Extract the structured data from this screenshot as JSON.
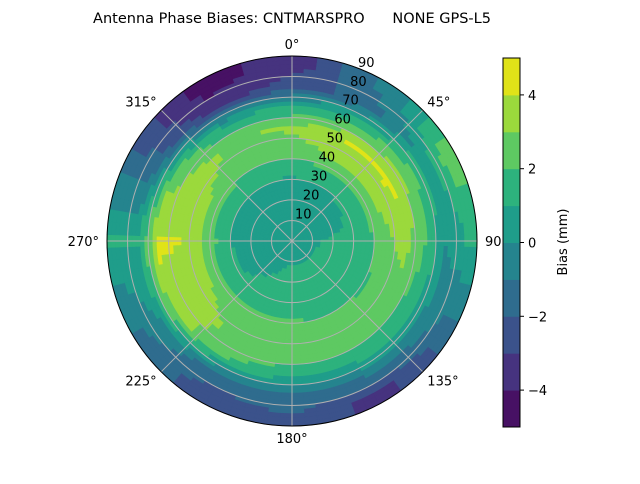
{
  "chart_data": {
    "type": "heatmap",
    "projection": "polar",
    "title": "Antenna Phase Biases: CNTMARSPRO      NONE GPS-L5",
    "theta_direction": "clockwise",
    "theta_zero": "top",
    "theta_tick_labels": [
      "0°",
      "45°",
      "90°",
      "135°",
      "180°",
      "225°",
      "270°",
      "315°"
    ],
    "theta_ticks": [
      0,
      45,
      90,
      135,
      180,
      225,
      270,
      315
    ],
    "radial_ticks": [
      10,
      20,
      30,
      40,
      50,
      60,
      70,
      80,
      90
    ],
    "radial_tick_labels": [
      "10",
      "20",
      "30",
      "40",
      "50",
      "60",
      "70",
      "80",
      "90"
    ],
    "rlim": [
      0,
      90
    ],
    "grid": true,
    "colormap": "viridis",
    "levels": [
      -5,
      -4,
      -3,
      -2,
      -1,
      0,
      1,
      2,
      3,
      4,
      5
    ],
    "level_colors": [
      "#471164",
      "#46337f",
      "#3b528b",
      "#2f6c8e",
      "#25848e",
      "#1f9d8a",
      "#2db27d",
      "#5ec962",
      "#9bd93c",
      "#e0e318"
    ],
    "colorbar": {
      "label": "Bias (mm)",
      "ticks": [
        -4,
        -2,
        0,
        2,
        4
      ],
      "tick_labels": [
        "−4",
        "−2",
        "0",
        "2",
        "4"
      ],
      "range": [
        -5,
        5
      ]
    },
    "grid_azimuth": [
      0,
      30,
      60,
      90,
      120,
      150,
      180,
      210,
      240,
      270,
      300,
      330
    ],
    "grid_zenith": [
      5,
      15,
      25,
      35,
      45,
      55,
      65,
      75,
      85
    ],
    "values": [
      [
        0.5,
        0.5,
        0.5,
        0.5,
        0.5,
        0.5,
        0.5,
        0.5,
        0.5,
        0.5,
        0.5,
        0.5
      ],
      [
        0.5,
        0.5,
        0.5,
        1.0,
        1.3,
        1.3,
        1.3,
        0.8,
        0.5,
        0.5,
        0.5,
        0.5
      ],
      [
        0.5,
        0.5,
        0.8,
        1.2,
        1.5,
        1.5,
        1.5,
        1.3,
        0.8,
        0.5,
        0.5,
        0.5
      ],
      [
        1.3,
        1.5,
        1.6,
        1.5,
        1.6,
        1.7,
        1.7,
        1.6,
        1.6,
        1.7,
        1.6,
        1.4
      ],
      [
        2.5,
        3.2,
        3.3,
        2.5,
        2.2,
        2.3,
        2.5,
        2.7,
        3.0,
        3.2,
        3.0,
        2.5
      ],
      [
        3.2,
        4.0,
        4.2,
        3.5,
        2.5,
        2.5,
        2.5,
        2.8,
        3.5,
        4.0,
        3.5,
        2.8
      ],
      [
        1.2,
        1.8,
        2.5,
        2.0,
        1.5,
        1.5,
        1.5,
        2.0,
        3.5,
        4.2,
        2.5,
        0.8
      ],
      [
        -2.5,
        -1.5,
        0.5,
        0.0,
        -0.5,
        -1.0,
        -1.5,
        -1.5,
        0.0,
        1.0,
        -1.5,
        -3.5
      ],
      [
        -3.5,
        -1.0,
        2.5,
        1.0,
        -1.5,
        -3.5,
        -2.0,
        -2.5,
        -1.0,
        1.0,
        -2.0,
        -4.5
      ]
    ]
  }
}
